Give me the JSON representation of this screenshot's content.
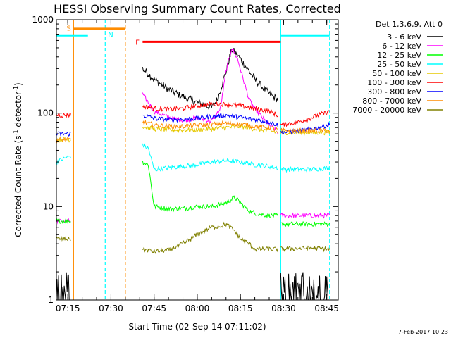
{
  "chart_data": {
    "type": "line",
    "title": "HESSI Observing Summary Count Rates, Corrected",
    "xlabel": "Start Time (02-Sep-14 07:11:02)",
    "ylabel": "Corrected Count Rate (s⁻¹ detector⁻¹)",
    "ylabel_parts": [
      "Corrected Count Rate (s",
      "-1",
      " detector",
      "-1",
      ")"
    ],
    "y_scale": "log",
    "ylim": [
      1,
      1000
    ],
    "xlim": [
      "07:11:02",
      "08:49:00"
    ],
    "x_ticks": [
      "07:15",
      "07:30",
      "07:45",
      "08:00",
      "08:15",
      "08:30",
      "08:45"
    ],
    "y_ticks": [
      "1",
      "10",
      "100",
      "1000"
    ],
    "legend_title": "Det 1,3,6,9, Att 0",
    "legend_position": "right",
    "date_stamp": "7-Feb-2017 10:23",
    "x_time_range": [
      "07:11:02",
      "08:49:00"
    ],
    "series": [
      {
        "name": "3 - 6 keV",
        "color": "#000000",
        "segments": [
          {
            "t": [
              "07:11",
              "07:16"
            ],
            "y": [
              1.0,
              1.0
            ],
            "note": "noisy near floor"
          },
          {
            "t": [
              "07:41",
              "07:45",
              "07:50",
              "07:55",
              "08:00",
              "08:05",
              "08:07",
              "08:10",
              "08:12",
              "08:14",
              "08:17",
              "08:20",
              "08:25",
              "08:28"
            ],
            "y": [
              300,
              230,
              180,
              150,
              130,
              115,
              140,
              280,
              480,
              420,
              310,
              230,
              160,
              140
            ]
          },
          {
            "t": [
              "08:29",
              "08:40",
              "08:46"
            ],
            "y": [
              1.0,
              1.0,
              1.0
            ],
            "note": "noisy near floor"
          }
        ]
      },
      {
        "name": "6 - 12 keV",
        "color": "#ff00ff",
        "segments": [
          {
            "t": [
              "07:11",
              "07:16"
            ],
            "y": [
              7,
              7
            ]
          },
          {
            "t": [
              "07:41",
              "07:45",
              "07:50",
              "07:55",
              "08:00",
              "08:05",
              "08:08",
              "08:10",
              "08:12",
              "08:14",
              "08:16",
              "08:18",
              "08:20",
              "08:24",
              "08:28"
            ],
            "y": [
              160,
              105,
              90,
              84,
              88,
              82,
              110,
              280,
              500,
              380,
              230,
              140,
              110,
              80,
              62
            ]
          },
          {
            "t": [
              "08:29",
              "08:40",
              "08:46"
            ],
            "y": [
              8,
              8,
              8
            ]
          }
        ]
      },
      {
        "name": "12 - 25 keV",
        "color": "#00ff00",
        "segments": [
          {
            "t": [
              "07:11",
              "07:16"
            ],
            "y": [
              7,
              7
            ]
          },
          {
            "t": [
              "07:41",
              "07:43",
              "07:45",
              "07:50",
              "07:55",
              "08:00",
              "08:05",
              "08:10",
              "08:13",
              "08:15",
              "08:18",
              "08:20",
              "08:25",
              "08:28"
            ],
            "y": [
              30,
              28,
              10,
              9.5,
              9.5,
              10,
              10,
              11,
              12.5,
              11,
              9,
              8.5,
              8,
              8
            ]
          },
          {
            "t": [
              "08:29",
              "08:40",
              "08:46"
            ],
            "y": [
              6.5,
              6.5,
              6.5
            ]
          }
        ]
      },
      {
        "name": "25 - 50 keV",
        "color": "#00ffff",
        "segments": [
          {
            "t": [
              "07:11",
              "07:13",
              "07:16"
            ],
            "y": [
              30,
              32,
              35
            ]
          },
          {
            "t": [
              "07:41",
              "07:43",
              "07:45",
              "07:50",
              "07:55",
              "08:00",
              "08:05",
              "08:10",
              "08:15",
              "08:20",
              "08:25",
              "08:28"
            ],
            "y": [
              45,
              42,
              25,
              26,
              27,
              28,
              30,
              31,
              30,
              28,
              27,
              26
            ]
          },
          {
            "t": [
              "08:29",
              "08:40",
              "08:46"
            ],
            "y": [
              25,
              25,
              26
            ]
          }
        ]
      },
      {
        "name": "50 - 100 keV",
        "color": "#e6c800",
        "segments": [
          {
            "t": [
              "07:11",
              "07:16"
            ],
            "y": [
              52,
              52
            ]
          },
          {
            "t": [
              "07:41",
              "07:45",
              "07:50",
              "07:55",
              "08:00",
              "08:05",
              "08:10",
              "08:15",
              "08:20",
              "08:25",
              "08:28"
            ],
            "y": [
              72,
              68,
              66,
              66,
              66,
              68,
              70,
              72,
              68,
              65,
              62
            ]
          },
          {
            "t": [
              "08:29",
              "08:40",
              "08:46"
            ],
            "y": [
              62,
              62,
              62
            ]
          }
        ]
      },
      {
        "name": "100 - 300 keV",
        "color": "#ff0000",
        "segments": [
          {
            "t": [
              "07:11",
              "07:16"
            ],
            "y": [
              95,
              95
            ]
          },
          {
            "t": [
              "07:41",
              "07:45",
              "07:50",
              "07:55",
              "08:00",
              "08:05",
              "08:10",
              "08:15",
              "08:20",
              "08:25",
              "08:28"
            ],
            "y": [
              120,
              112,
              110,
              112,
              120,
              125,
              125,
              120,
              112,
              105,
              95
            ]
          },
          {
            "t": [
              "08:29",
              "08:35",
              "08:40",
              "08:46"
            ],
            "y": [
              75,
              80,
              90,
              105
            ]
          }
        ]
      },
      {
        "name": "300 - 800 keV",
        "color": "#0000ff",
        "segments": [
          {
            "t": [
              "07:11",
              "07:16"
            ],
            "y": [
              60,
              60
            ]
          },
          {
            "t": [
              "07:41",
              "07:45",
              "07:50",
              "07:55",
              "08:00",
              "08:05",
              "08:10",
              "08:15",
              "08:20",
              "08:25",
              "08:28"
            ],
            "y": [
              95,
              88,
              85,
              86,
              88,
              92,
              95,
              90,
              85,
              80,
              75
            ]
          },
          {
            "t": [
              "08:29",
              "08:35",
              "08:40",
              "08:46"
            ],
            "y": [
              62,
              64,
              68,
              75
            ]
          }
        ]
      },
      {
        "name": "800 - 7000 keV",
        "color": "#ff8c00",
        "segments": [
          {
            "t": [
              "07:11",
              "07:16"
            ],
            "y": [
              52,
              52
            ]
          },
          {
            "t": [
              "07:41",
              "07:45",
              "07:50",
              "07:55",
              "08:00",
              "08:05",
              "08:10",
              "08:15",
              "08:20",
              "08:25",
              "08:28"
            ],
            "y": [
              80,
              75,
              72,
              72,
              74,
              76,
              78,
              76,
              72,
              70,
              66
            ]
          },
          {
            "t": [
              "08:29",
              "08:40",
              "08:46"
            ],
            "y": [
              65,
              65,
              65
            ]
          }
        ]
      },
      {
        "name": "7000 - 20000 keV",
        "color": "#808000",
        "segments": [
          {
            "t": [
              "07:11",
              "07:16"
            ],
            "y": [
              4.5,
              4.5
            ]
          },
          {
            "t": [
              "07:41",
              "07:45",
              "07:50",
              "07:55",
              "08:00",
              "08:05",
              "08:08",
              "08:10",
              "08:13",
              "08:15",
              "08:18",
              "08:20",
              "08:25",
              "08:28"
            ],
            "y": [
              3.5,
              3.3,
              3.4,
              4.0,
              5.0,
              6.0,
              6.2,
              6.5,
              5.5,
              4.5,
              4.0,
              3.5,
              3.5,
              3.5
            ]
          },
          {
            "t": [
              "08:29",
              "08:40",
              "08:46"
            ],
            "y": [
              3.5,
              3.6,
              3.5
            ]
          }
        ]
      }
    ],
    "flags": [
      {
        "label": "S",
        "color": "#ff8c00",
        "start": "07:17",
        "end": "07:35",
        "y": 800
      },
      {
        "label": "N",
        "color": "#00ffff",
        "start": "07:11",
        "end": "07:22",
        "y": 680
      },
      {
        "label": "N",
        "color": "#00ffff",
        "start": "08:29",
        "end": "08:46",
        "y": 680
      },
      {
        "label": "F",
        "color": "#ff0000",
        "start": "07:41",
        "end": "08:29",
        "y": 580
      }
    ],
    "vertical_lines": [
      {
        "t": "07:17",
        "color": "#ff8c00",
        "style": "solid"
      },
      {
        "t": "07:28",
        "color": "#00ffff",
        "style": "dashed"
      },
      {
        "t": "07:35",
        "color": "#ff8c00",
        "style": "dashed"
      },
      {
        "t": "08:29",
        "color": "#00ffff",
        "style": "solid"
      },
      {
        "t": "08:46",
        "color": "#00ffff",
        "style": "dashed"
      }
    ],
    "flag_labels": [
      {
        "text": "S",
        "color": "#ff8c00",
        "t": "07:17"
      },
      {
        "text": "N",
        "color": "#00ffff",
        "t": "07:28"
      },
      {
        "text": "F",
        "color": "#ff0000",
        "t": "07:40"
      }
    ]
  }
}
